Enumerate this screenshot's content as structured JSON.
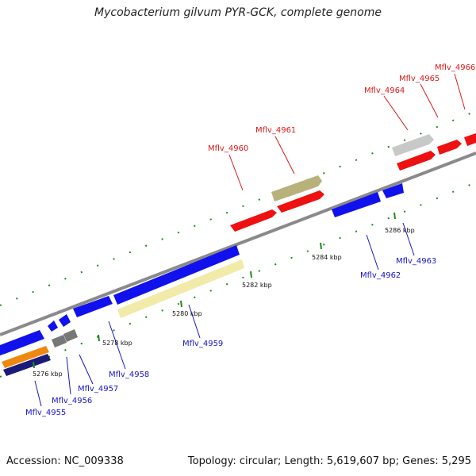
{
  "header": {
    "title": "Mycobacterium gilvum PYR-GCK, complete genome"
  },
  "footer": {
    "accession": "Accession: NC_009338",
    "topology": "Topology: circular; Length: 5,619,607 bp; Genes: 5,295"
  },
  "map": {
    "colors": {
      "backbone": "#8a8a8a",
      "forward_gene": "#ee1111",
      "reverse_gene": "#1111ee",
      "tick": "#1e8a1e",
      "label_forward": "#e01818",
      "label_reverse": "#1515c8"
    },
    "scale_labels": [
      "5276 kbp",
      "5278 kbp",
      "5280 kbp",
      "5282 kbp",
      "5284 kbp",
      "5286 kbp"
    ],
    "forward_labels": [
      "Mflv_4960",
      "Mflv_4961",
      "Mflv_4964",
      "Mflv_4965",
      "Mflv_4966"
    ],
    "reverse_labels": [
      "Mflv_4955",
      "Mflv_4956",
      "Mflv_4957",
      "Mflv_4958",
      "Mflv_4959",
      "Mflv_4962",
      "Mflv_4963"
    ]
  }
}
